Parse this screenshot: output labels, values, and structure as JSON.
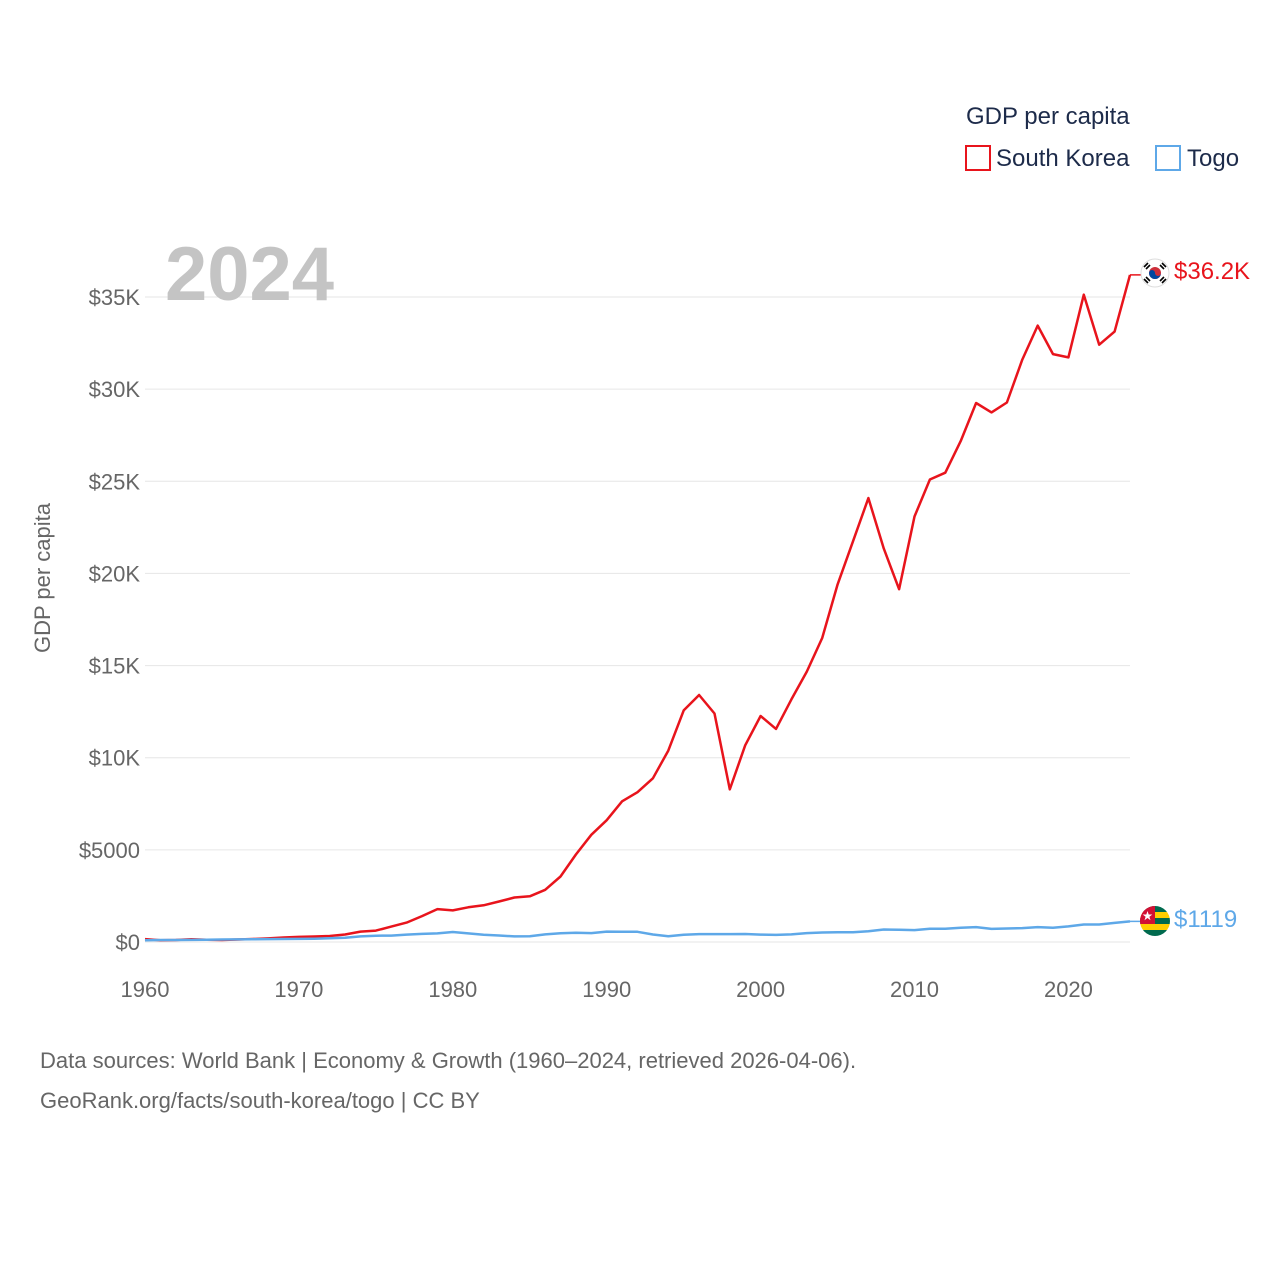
{
  "chart_data": {
    "type": "line",
    "title": "",
    "year_label": "2024",
    "legend_title": "GDP per capita",
    "ylabel": "GDP per capita",
    "xlabel": "",
    "xlim": [
      1960,
      2024
    ],
    "ylim": [
      0,
      37500
    ],
    "x_ticks": [
      1960,
      1970,
      1980,
      1990,
      2000,
      2010,
      2020
    ],
    "x_tick_labels": [
      "1960",
      "1970",
      "1980",
      "1990",
      "2000",
      "2010",
      "2020"
    ],
    "y_ticks": [
      0,
      5000,
      10000,
      15000,
      20000,
      25000,
      30000,
      35000
    ],
    "y_tick_labels": [
      "$0",
      "$5000",
      "$10K",
      "$15K",
      "$20K",
      "$25K",
      "$30K",
      "$35K"
    ],
    "grid": true,
    "legend_position": "top-right",
    "x": [
      1960,
      1961,
      1962,
      1963,
      1964,
      1965,
      1966,
      1967,
      1968,
      1969,
      1970,
      1971,
      1972,
      1973,
      1974,
      1975,
      1976,
      1977,
      1978,
      1979,
      1980,
      1981,
      1982,
      1983,
      1984,
      1985,
      1986,
      1987,
      1988,
      1989,
      1990,
      1991,
      1992,
      1993,
      1994,
      1995,
      1996,
      1997,
      1998,
      1999,
      2000,
      2001,
      2002,
      2003,
      2004,
      2005,
      2006,
      2007,
      2008,
      2009,
      2010,
      2011,
      2012,
      2013,
      2014,
      2015,
      2016,
      2017,
      2018,
      2019,
      2020,
      2021,
      2022,
      2023,
      2024
    ],
    "series": [
      {
        "name": "South Korea",
        "color": "#e8141c",
        "end_label": "$36.2K",
        "flag_icon": "south-korea-flag-icon",
        "values": [
          158,
          94,
          106,
          146,
          124,
          108,
          133,
          163,
          198,
          243,
          279,
          301,
          324,
          406,
          563,
          617,
          834,
          1055,
          1405,
          1783,
          1715,
          1883,
          1993,
          2199,
          2413,
          2482,
          2835,
          3555,
          4750,
          5817,
          6610,
          7637,
          8127,
          8885,
          10385,
          12565,
          13403,
          12398,
          8282,
          10672,
          12263,
          11563,
          13165,
          14673,
          16496,
          19403,
          21743,
          24086,
          21345,
          19144,
          23087,
          25096,
          25467,
          27179,
          29250,
          28737,
          29274,
          31601,
          33447,
          31902,
          31721,
          35126,
          32410,
          33121,
          36200
        ]
      },
      {
        "name": "Togo",
        "color": "#5ea8e8",
        "end_label": "$1119",
        "flag_icon": "togo-flag-icon",
        "values": [
          98,
          106,
          110,
          115,
          124,
          134,
          141,
          148,
          155,
          165,
          170,
          179,
          205,
          236,
          302,
          341,
          345,
          402,
          437,
          464,
          540,
          469,
          390,
          350,
          305,
          315,
          412,
          476,
          501,
          481,
          564,
          551,
          555,
          406,
          308,
          394,
          430,
          429,
          429,
          436,
          404,
          386,
          412,
          481,
          517,
          526,
          532,
          580,
          676,
          666,
          645,
          717,
          718,
          771,
          808,
          709,
          731,
          752,
          808,
          777,
          845,
          947,
          947,
          1039,
          1119
        ]
      }
    ]
  },
  "footer": {
    "source_line_1": "Data sources: World Bank | Economy & Growth (1960–2024, retrieved 2026-04-06).",
    "source_line_2": "GeoRank.org/facts/south-korea/togo | CC BY"
  }
}
